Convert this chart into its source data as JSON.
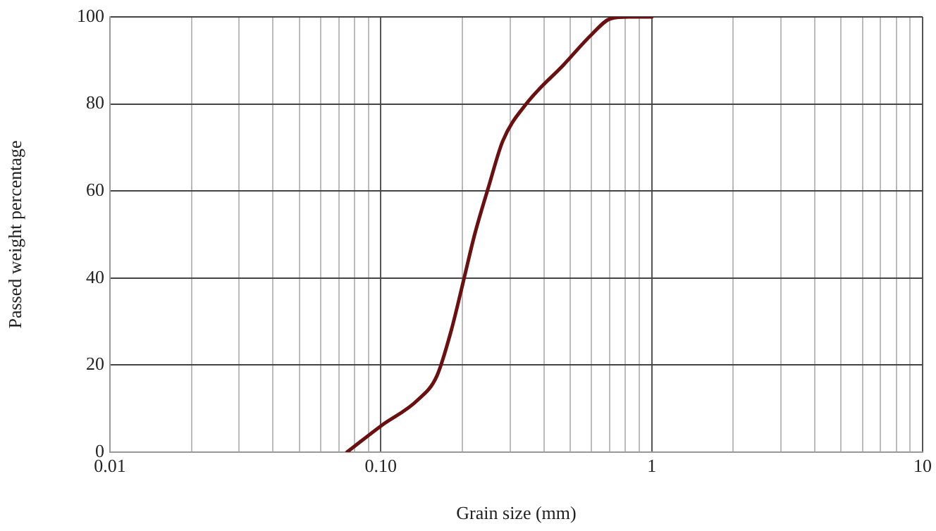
{
  "chart_data": {
    "type": "line",
    "xlabel": "Grain size (mm)",
    "ylabel": "Passed weight percentage",
    "log": "x",
    "grid": true,
    "legend": false,
    "marker": "none",
    "line_style": "solid",
    "xlim": [
      0.01,
      10
    ],
    "ylim": [
      0,
      100
    ],
    "yticks": [
      0,
      20,
      40,
      60,
      80,
      100
    ],
    "xticks": [
      0.01,
      {
        "value": 0.02,
        "label": null
      },
      {
        "value": 0.03,
        "label": null
      },
      {
        "value": 0.04,
        "label": null
      },
      {
        "value": 0.05,
        "label": null
      },
      {
        "value": 0.06,
        "label": null
      },
      {
        "value": 0.07,
        "label": null
      },
      {
        "value": 0.08,
        "label": null
      },
      {
        "value": 0.09,
        "label": null
      },
      {
        "value": 0.1,
        "label": "0.10"
      },
      {
        "value": 0.2,
        "label": null
      },
      {
        "value": 0.3,
        "label": null
      },
      {
        "value": 0.4,
        "label": null
      },
      {
        "value": 0.5,
        "label": null
      },
      {
        "value": 0.6,
        "label": null
      },
      {
        "value": 0.7,
        "label": null
      },
      {
        "value": 0.8,
        "label": null
      },
      {
        "value": 0.9,
        "label": null
      },
      1,
      {
        "value": 2,
        "label": null
      },
      {
        "value": 3,
        "label": null
      },
      {
        "value": 4,
        "label": null
      },
      {
        "value": 5,
        "label": null
      },
      {
        "value": 6,
        "label": null
      },
      {
        "value": 7,
        "label": null
      },
      {
        "value": 8,
        "label": null
      },
      {
        "value": 9,
        "label": null
      },
      10
    ],
    "series": [
      {
        "color": "#6b1010",
        "x": [
          0.075,
          0.1,
          0.137,
          0.161,
          0.182,
          0.203,
          0.222,
          0.25,
          0.282,
          0.344,
          0.473,
          0.601,
          0.705,
          0.826,
          1.0
        ],
        "values": [
          0,
          6,
          12,
          17.5,
          28,
          40,
          50,
          61,
          71.5,
          80,
          89,
          96,
          99.6,
          100,
          100
        ]
      }
    ]
  }
}
